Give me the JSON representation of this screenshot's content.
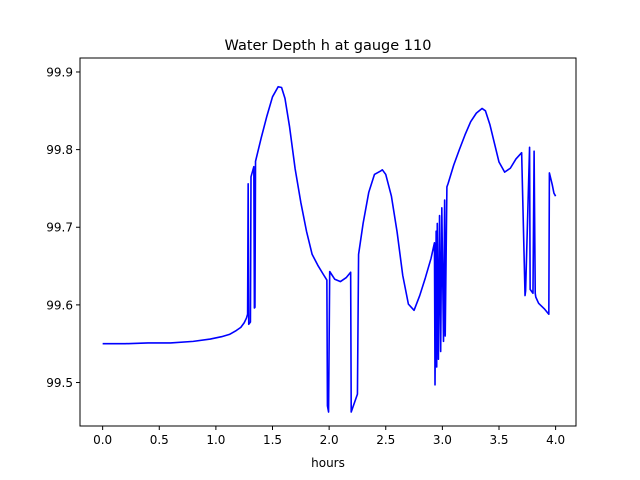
{
  "chart_data": {
    "type": "line",
    "title": "Water Depth h at gauge 110",
    "xlabel": "hours",
    "ylabel": "",
    "xlim": [
      -0.2,
      4.18
    ],
    "ylim": [
      99.444,
      99.918
    ],
    "grid": false,
    "line_color": "#0000ff",
    "x_ticks": [
      0.0,
      0.5,
      1.0,
      1.5,
      2.0,
      2.5,
      3.0,
      3.5,
      4.0
    ],
    "x_tick_labels": [
      "0.0",
      "0.5",
      "1.0",
      "1.5",
      "2.0",
      "2.5",
      "3.0",
      "3.5",
      "4.0"
    ],
    "y_ticks": [
      99.5,
      99.6,
      99.7,
      99.8,
      99.9
    ],
    "y_tick_labels": [
      "99.5",
      "99.6",
      "99.7",
      "99.8",
      "99.9"
    ],
    "series": [
      {
        "x": [
          0.0,
          0.2,
          0.4,
          0.6,
          0.8,
          0.95,
          1.05,
          1.12,
          1.18,
          1.22,
          1.25,
          1.27,
          1.28,
          1.285,
          1.29,
          1.3,
          1.305,
          1.31,
          1.335,
          1.34,
          1.345,
          1.35,
          1.4,
          1.45,
          1.5,
          1.55,
          1.58,
          1.61,
          1.65,
          1.7,
          1.75,
          1.8,
          1.85,
          1.9,
          1.95,
          1.98,
          1.985,
          1.995,
          2.005,
          2.05,
          2.1,
          2.15,
          2.19,
          2.195,
          2.25,
          2.26,
          2.3,
          2.35,
          2.4,
          2.45,
          2.47,
          2.5,
          2.55,
          2.6,
          2.65,
          2.7,
          2.75,
          2.8,
          2.85,
          2.9,
          2.93,
          2.935,
          2.945,
          2.95,
          2.955,
          2.965,
          2.975,
          2.985,
          2.995,
          3.01,
          3.02,
          3.025,
          3.04,
          3.05,
          3.1,
          3.15,
          3.2,
          3.25,
          3.3,
          3.35,
          3.38,
          3.42,
          3.46,
          3.5,
          3.55,
          3.6,
          3.65,
          3.7,
          3.73,
          3.735,
          3.77,
          3.775,
          3.8,
          3.81,
          3.82,
          3.825,
          3.85,
          3.9,
          3.94,
          3.945,
          3.97,
          3.985,
          4.0
        ],
        "y": [
          99.55,
          99.55,
          99.551,
          99.551,
          99.553,
          99.556,
          99.559,
          99.562,
          99.567,
          99.571,
          99.577,
          99.583,
          99.588,
          99.756,
          99.575,
          99.577,
          99.578,
          99.765,
          99.778,
          99.596,
          99.597,
          99.785,
          99.815,
          99.843,
          99.868,
          99.881,
          99.88,
          99.866,
          99.83,
          99.775,
          99.732,
          99.695,
          99.665,
          99.651,
          99.639,
          99.632,
          99.47,
          99.462,
          99.643,
          99.633,
          99.63,
          99.635,
          99.642,
          99.462,
          99.485,
          99.665,
          99.705,
          99.745,
          99.768,
          99.772,
          99.774,
          99.768,
          99.74,
          99.694,
          99.638,
          99.601,
          99.593,
          99.612,
          99.635,
          99.66,
          99.68,
          99.497,
          99.695,
          99.52,
          99.705,
          99.53,
          99.715,
          99.54,
          99.725,
          99.553,
          99.735,
          99.56,
          99.752,
          99.756,
          99.78,
          99.8,
          99.819,
          99.836,
          99.847,
          99.853,
          99.85,
          99.832,
          99.808,
          99.784,
          99.771,
          99.776,
          99.788,
          99.796,
          99.612,
          99.618,
          99.803,
          99.62,
          99.615,
          99.798,
          99.615,
          99.61,
          99.602,
          99.595,
          99.588,
          99.77,
          99.755,
          99.744,
          99.74
        ]
      }
    ]
  }
}
